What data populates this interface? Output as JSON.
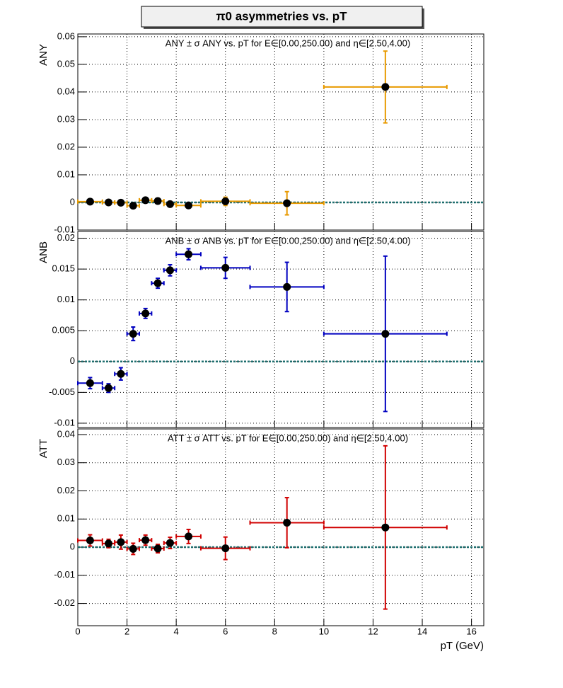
{
  "title": "π0 asymmetries vs. pT",
  "chart_data": [
    {
      "type": "scatter",
      "title": "ANY ± σ ANY vs. pT for E∈[0.00,250.00) and η∈[2.50,4.00)",
      "y_label": "ANY",
      "color": "#e89a00",
      "grid": true,
      "x": [
        0.5,
        1.25,
        1.75,
        2.25,
        2.75,
        3.25,
        3.75,
        4.5,
        6,
        8.5,
        12.5
      ],
      "xerr": [
        0.5,
        0.25,
        0.25,
        0.25,
        0.25,
        0.25,
        0.25,
        0.5,
        1,
        1.5,
        2.5
      ],
      "values": [
        0.0003,
        0.0,
        -0.0001,
        -0.0012,
        0.0008,
        0.0005,
        -0.0006,
        -0.0011,
        0.0004,
        -0.0003,
        0.0418
      ],
      "errors": [
        0.0006,
        0.0005,
        0.0006,
        0.0007,
        0.0006,
        0.0006,
        0.0006,
        0.0007,
        0.0015,
        0.0042,
        0.013
      ],
      "xlim": [
        0,
        16.5
      ],
      "xticks": [
        0,
        2,
        4,
        6,
        8,
        10,
        12,
        14,
        16
      ],
      "ylim": [
        -0.01,
        0.061
      ],
      "yticks": [
        -0.01,
        0,
        0.01,
        0.02,
        0.03,
        0.04,
        0.05,
        0.06
      ]
    },
    {
      "type": "scatter",
      "title": "ANB ± σ ANB vs. pT for E∈[0.00,250.00) and η∈[2.50,4.00)",
      "y_label": "ANB",
      "color": "#0000c0",
      "grid": true,
      "x": [
        0.5,
        1.25,
        1.75,
        2.25,
        2.75,
        3.25,
        3.75,
        4.5,
        6,
        8.5,
        12.5
      ],
      "xerr": [
        0.5,
        0.25,
        0.25,
        0.25,
        0.25,
        0.25,
        0.25,
        0.5,
        1,
        1.5,
        2.5
      ],
      "values": [
        -0.0035,
        -0.0043,
        -0.002,
        0.0045,
        0.0078,
        0.0127,
        0.0148,
        0.0174,
        0.0152,
        0.0121,
        0.0045
      ],
      "errors": [
        0.0009,
        0.0007,
        0.001,
        0.0011,
        0.0008,
        0.0008,
        0.0009,
        0.0009,
        0.0017,
        0.004,
        0.0126
      ],
      "xlim": [
        0,
        16.5
      ],
      "xticks": [
        0,
        2,
        4,
        6,
        8,
        10,
        12,
        14,
        16
      ],
      "ylim": [
        -0.0107,
        0.0211
      ],
      "yticks": [
        -0.01,
        -0.005,
        0,
        0.005,
        0.01,
        0.015,
        0.02
      ]
    },
    {
      "type": "scatter",
      "title": "ATT ± σ ATT vs. pT for E∈[0.00,250.00) and η∈[2.50,4.00)",
      "y_label": "ATT",
      "x_label": "pT (GeV)",
      "color": "#d00000",
      "grid": true,
      "x": [
        0.5,
        1.25,
        1.75,
        2.25,
        2.75,
        3.25,
        3.75,
        4.5,
        6,
        8.5,
        12.5
      ],
      "xerr": [
        0.5,
        0.25,
        0.25,
        0.25,
        0.25,
        0.25,
        0.25,
        0.5,
        1,
        1.5,
        2.5
      ],
      "values": [
        0.0024,
        0.0013,
        0.0018,
        -0.0006,
        0.0025,
        -0.0005,
        0.0015,
        0.0038,
        -0.0004,
        0.0087,
        0.007
      ],
      "errors": [
        0.002,
        0.0015,
        0.0025,
        0.002,
        0.0018,
        0.0015,
        0.002,
        0.0025,
        0.004,
        0.0089,
        0.029
      ],
      "xlim": [
        0,
        16.5
      ],
      "xticks": [
        0,
        2,
        4,
        6,
        8,
        10,
        12,
        14,
        16
      ],
      "ylim": [
        -0.0279,
        0.042
      ],
      "yticks": [
        -0.02,
        -0.01,
        0,
        0.01,
        0.02,
        0.03,
        0.04
      ]
    }
  ]
}
